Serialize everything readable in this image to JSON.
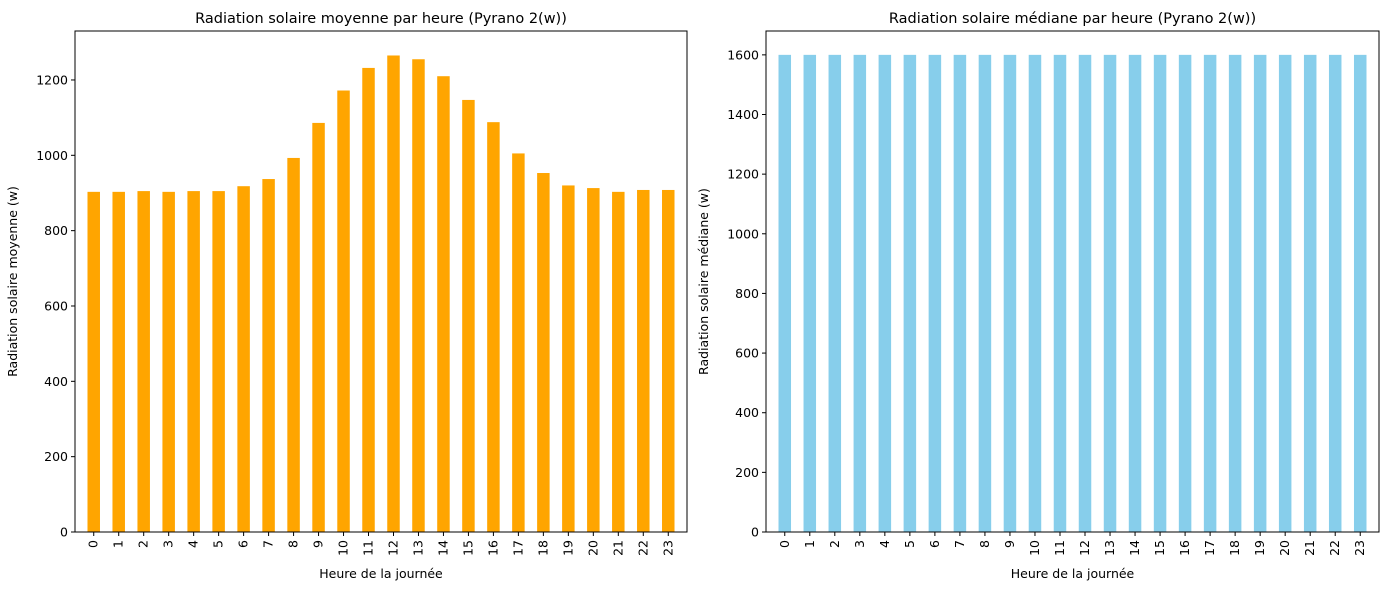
{
  "chart_data": [
    {
      "type": "bar",
      "title": "Radiation solaire moyenne par heure (Pyrano 2(w))",
      "xlabel": "Heure de la journée",
      "ylabel": "Radiation solaire moyenne (w)",
      "categories": [
        "0",
        "1",
        "2",
        "3",
        "4",
        "5",
        "6",
        "7",
        "8",
        "9",
        "10",
        "11",
        "12",
        "13",
        "14",
        "15",
        "16",
        "17",
        "18",
        "19",
        "20",
        "21",
        "22",
        "23"
      ],
      "values": [
        903,
        903,
        905,
        903,
        905,
        905,
        918,
        937,
        993,
        1086,
        1172,
        1232,
        1265,
        1255,
        1210,
        1147,
        1088,
        1005,
        953,
        920,
        913,
        903,
        908,
        908
      ],
      "yticks": [
        0,
        200,
        400,
        600,
        800,
        1000,
        1200
      ],
      "ylim": [
        0,
        1330
      ],
      "color": "#FFA500",
      "grid": false,
      "legend": false
    },
    {
      "type": "bar",
      "title": "Radiation solaire médiane par heure (Pyrano 2(w))",
      "xlabel": "Heure de la journée",
      "ylabel": "Radiation solaire médiane (w)",
      "categories": [
        "0",
        "1",
        "2",
        "3",
        "4",
        "5",
        "6",
        "7",
        "8",
        "9",
        "10",
        "11",
        "12",
        "13",
        "14",
        "15",
        "16",
        "17",
        "18",
        "19",
        "20",
        "21",
        "22",
        "23"
      ],
      "values": [
        1600,
        1600,
        1600,
        1600,
        1600,
        1600,
        1600,
        1600,
        1600,
        1600,
        1600,
        1600,
        1600,
        1600,
        1600,
        1600,
        1600,
        1600,
        1600,
        1600,
        1600,
        1600,
        1600,
        1600
      ],
      "yticks": [
        0,
        200,
        400,
        600,
        800,
        1000,
        1200,
        1400,
        1600
      ],
      "ylim": [
        0,
        1680
      ],
      "color": "#87CEEB",
      "grid": false,
      "legend": false
    }
  ]
}
